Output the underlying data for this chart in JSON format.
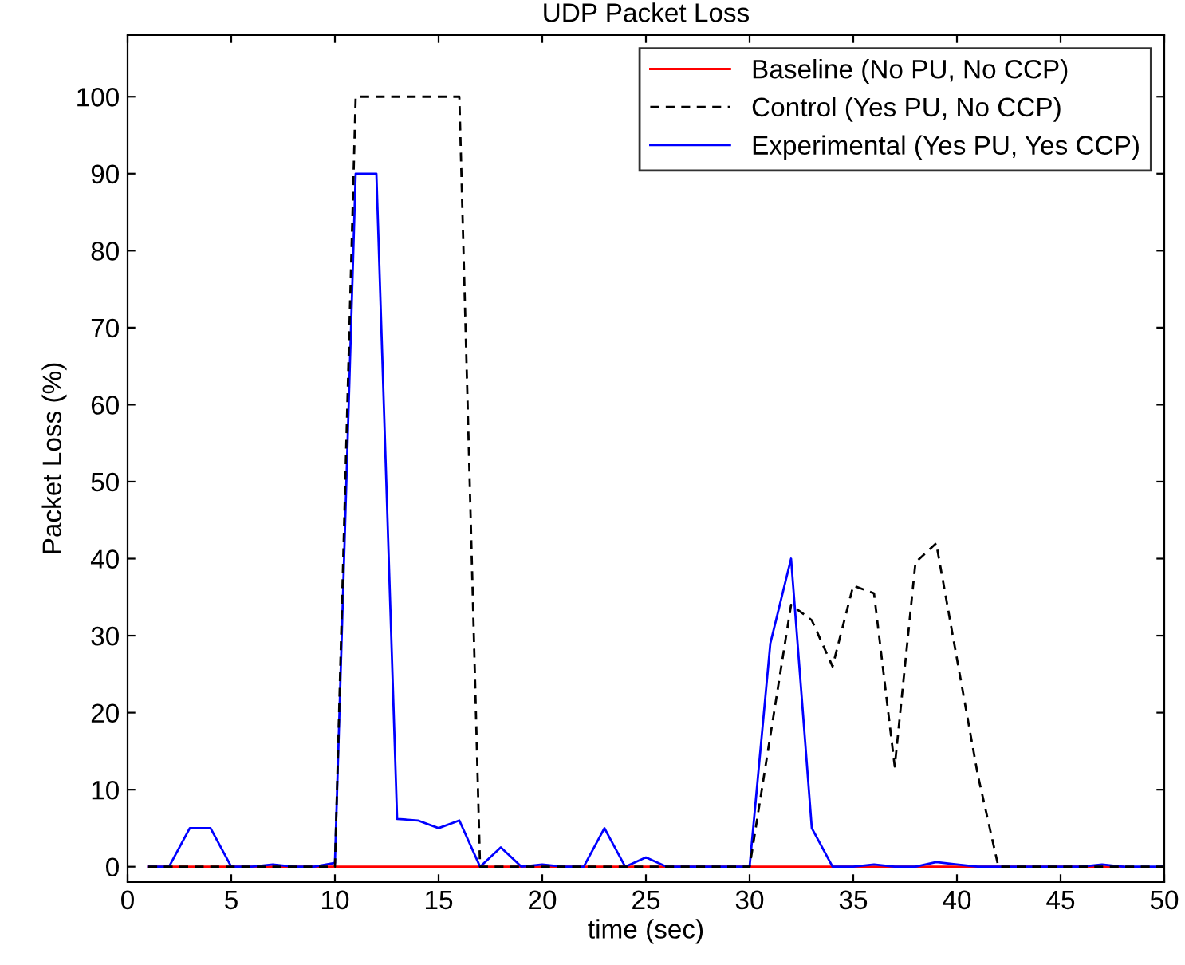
{
  "chart_data": {
    "type": "line",
    "title": "UDP Packet Loss",
    "xlabel": "time (sec)",
    "ylabel": "Packet Loss (%)",
    "x": [
      1,
      2,
      3,
      4,
      5,
      6,
      7,
      8,
      9,
      10,
      11,
      12,
      13,
      14,
      15,
      16,
      17,
      18,
      19,
      20,
      21,
      22,
      23,
      24,
      25,
      26,
      27,
      28,
      29,
      30,
      31,
      32,
      33,
      34,
      35,
      36,
      37,
      38,
      39,
      40,
      41,
      42,
      43,
      44,
      45,
      46,
      47,
      48,
      49,
      50
    ],
    "series": [
      {
        "name": "Baseline (No PU, No CCP)",
        "color": "#ff0000",
        "line_style": "solid",
        "values": [
          0,
          0,
          0,
          0,
          0,
          0,
          0,
          0,
          0,
          0,
          0,
          0,
          0,
          0,
          0,
          0,
          0,
          0,
          0,
          0,
          0,
          0,
          0,
          0,
          0,
          0,
          0,
          0,
          0,
          0,
          0,
          0,
          0,
          0,
          0,
          0,
          0,
          0,
          0,
          0,
          0,
          0,
          0,
          0,
          0,
          0,
          0,
          0,
          null,
          null
        ]
      },
      {
        "name": "Control (Yes PU, No CCP)",
        "color": "#000000",
        "line_style": "dashed",
        "values": [
          0,
          0,
          0,
          0,
          0,
          0,
          0,
          0,
          0,
          0,
          100,
          100,
          100,
          100,
          100,
          100,
          0,
          0,
          0,
          0,
          0,
          0,
          0,
          0,
          0,
          0,
          0,
          0,
          0,
          0,
          17,
          34,
          32,
          26,
          36.5,
          35.5,
          13,
          39.5,
          42,
          27,
          12,
          0,
          0,
          0,
          0,
          0,
          0,
          0,
          0,
          0
        ]
      },
      {
        "name": "Experimental (Yes PU, Yes CCP)",
        "color": "#0000ff",
        "line_style": "solid",
        "values": [
          0,
          0,
          5,
          5,
          0,
          0,
          0.3,
          0,
          0,
          0.5,
          90,
          90,
          6.2,
          6,
          5,
          6,
          0,
          2.5,
          0,
          0.3,
          0,
          0,
          5,
          0,
          1.2,
          0,
          0,
          0,
          0,
          0,
          29,
          40,
          5,
          0,
          0,
          0.3,
          0,
          0,
          0.6,
          0.3,
          0,
          0,
          0,
          0,
          0,
          0,
          0.3,
          0,
          0,
          0
        ]
      }
    ],
    "xlim": [
      0,
      50
    ],
    "xticks": [
      0,
      5,
      10,
      15,
      20,
      25,
      30,
      35,
      40,
      45,
      50
    ],
    "ylim": [
      -2,
      108
    ],
    "yticks": [
      0,
      10,
      20,
      30,
      40,
      50,
      60,
      70,
      80,
      90,
      100
    ],
    "grid": false,
    "legend": "top right",
    "marker": "none"
  }
}
